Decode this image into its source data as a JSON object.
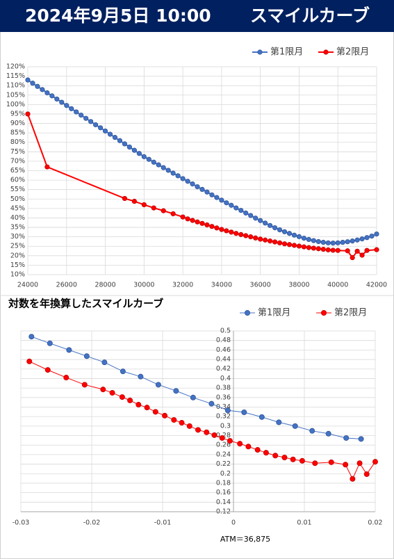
{
  "header": {
    "title": "2024年9月5日 10:00",
    "subtitle": "スマイルカーブ"
  },
  "chart_data": [
    {
      "type": "line",
      "legend": "top-right",
      "grid": true,
      "xlim": [
        24000,
        42000
      ],
      "xticks": [
        24000,
        26000,
        28000,
        30000,
        32000,
        34000,
        36000,
        38000,
        40000,
        42000
      ],
      "ylim": [
        10,
        120
      ],
      "yticks": [
        {
          "value": 10,
          "label": "10%"
        },
        {
          "value": 15,
          "label": "15%"
        },
        {
          "value": 20,
          "label": "20%"
        },
        {
          "value": 25,
          "label": "25%"
        },
        {
          "value": 30,
          "label": "30%"
        },
        {
          "value": 35,
          "label": "35%"
        },
        {
          "value": 40,
          "label": "40%"
        },
        {
          "value": 45,
          "label": "45%"
        },
        {
          "value": 50,
          "label": "50%"
        },
        {
          "value": 55,
          "label": "55%"
        },
        {
          "value": 60,
          "label": "60%"
        },
        {
          "value": 65,
          "label": "65%"
        },
        {
          "value": 70,
          "label": "70%"
        },
        {
          "value": 75,
          "label": "75%"
        },
        {
          "value": 80,
          "label": "80%"
        },
        {
          "value": 85,
          "label": "85%"
        },
        {
          "value": 90,
          "label": "90%"
        },
        {
          "value": 95,
          "label": "95%"
        },
        {
          "value": 100,
          "label": "100%"
        },
        {
          "value": 105,
          "label": "105%"
        },
        {
          "value": 110,
          "label": "110%"
        },
        {
          "value": 115,
          "label": "115%"
        },
        {
          "value": 120,
          "label": "120%"
        }
      ],
      "series": [
        {
          "name": "第1限月",
          "color": "#4472c4",
          "x": [
            24000,
            24250,
            24500,
            24750,
            25000,
            25250,
            25500,
            25750,
            26000,
            26250,
            26500,
            26750,
            27000,
            27250,
            27500,
            27750,
            28000,
            28250,
            28500,
            28750,
            29000,
            29250,
            29500,
            29750,
            30000,
            30250,
            30500,
            30750,
            31000,
            31250,
            31500,
            31750,
            32000,
            32250,
            32500,
            32750,
            33000,
            33250,
            33500,
            33750,
            34000,
            34250,
            34500,
            34750,
            35000,
            35250,
            35500,
            35750,
            36000,
            36250,
            36500,
            36750,
            37000,
            37250,
            37500,
            37750,
            38000,
            38250,
            38500,
            38750,
            39000,
            39250,
            39500,
            39750,
            40000,
            40250,
            40500,
            40750,
            41000,
            41250,
            41500,
            41750,
            42000
          ],
          "values": [
            113.0,
            111.3,
            109.6,
            107.9,
            106.2,
            104.6,
            102.9,
            101.2,
            99.5,
            97.8,
            96.1,
            94.4,
            92.7,
            91.0,
            89.3,
            87.7,
            86.0,
            84.3,
            82.6,
            80.9,
            79.2,
            77.5,
            75.8,
            74.1,
            72.4,
            71.0,
            69.5,
            68.1,
            66.6,
            65.2,
            63.7,
            62.3,
            60.8,
            59.4,
            58.0,
            56.5,
            55.1,
            53.7,
            52.2,
            50.8,
            49.4,
            48.0,
            46.7,
            45.3,
            44.0,
            42.6,
            41.3,
            39.9,
            38.6,
            37.3,
            36.0,
            34.8,
            33.7,
            32.7,
            31.8,
            30.9,
            30.1,
            29.3,
            28.6,
            28.0,
            27.5,
            27.1,
            26.8,
            26.7,
            26.8,
            27.1,
            27.4,
            27.8,
            28.3,
            28.9,
            29.6,
            30.4,
            31.5
          ]
        },
        {
          "name": "第2限月",
          "color": "#ff0000",
          "x": [
            24000,
            25000,
            29000,
            29500,
            30000,
            30500,
            31000,
            31500,
            32000,
            32250,
            32500,
            32750,
            33000,
            33250,
            33500,
            33750,
            34000,
            34250,
            34500,
            34750,
            35000,
            35250,
            35500,
            35750,
            36000,
            36250,
            36500,
            36750,
            37000,
            37250,
            37500,
            37750,
            38000,
            38250,
            38500,
            38750,
            39000,
            39250,
            39500,
            39750,
            40000,
            40500,
            40750,
            41000,
            41250,
            41500,
            42000
          ],
          "values": [
            95.0,
            67.0,
            50.3,
            48.8,
            47.0,
            45.3,
            43.8,
            42.2,
            40.5,
            39.5,
            38.7,
            37.9,
            37.1,
            36.3,
            35.5,
            34.7,
            33.9,
            33.2,
            32.5,
            31.8,
            31.2,
            30.6,
            30.0,
            29.4,
            28.8,
            28.3,
            27.8,
            27.3,
            26.8,
            26.3,
            25.9,
            25.5,
            25.1,
            24.7,
            24.3,
            24.0,
            23.7,
            23.4,
            23.1,
            22.9,
            22.8,
            22.6,
            19.0,
            22.4,
            20.3,
            22.8,
            23.2
          ]
        }
      ]
    },
    {
      "type": "line",
      "title": "対数を年換算したスマイルカーブ",
      "legend": "top-right",
      "grid": true,
      "annotation": "ATM＝36,875",
      "xlim": [
        -0.03,
        0.02
      ],
      "xticks": [
        -0.03,
        -0.02,
        -0.01,
        0,
        0.01,
        0.02
      ],
      "ylim": [
        0.12,
        0.5
      ],
      "yticks": [
        0.12,
        0.14,
        0.16,
        0.18,
        0.2,
        0.22,
        0.24,
        0.26,
        0.28,
        0.3,
        0.32,
        0.34,
        0.36,
        0.38,
        0.4,
        0.42,
        0.44,
        0.46,
        0.48,
        0.5
      ],
      "series": [
        {
          "name": "第1限月",
          "color": "#4472c4",
          "x": [
            -0.0285,
            -0.0259,
            -0.0232,
            -0.0207,
            -0.0182,
            -0.0156,
            -0.0131,
            -0.0106,
            -0.0081,
            -0.0057,
            -0.0031,
            -0.0008,
            0.0015,
            0.004,
            0.0064,
            0.0087,
            0.0111,
            0.0134,
            0.0159,
            0.018
          ],
          "values": [
            0.488,
            0.474,
            0.46,
            0.447,
            0.434,
            0.415,
            0.404,
            0.387,
            0.374,
            0.36,
            0.347,
            0.333,
            0.329,
            0.319,
            0.308,
            0.3,
            0.29,
            0.284,
            0.275,
            0.273
          ]
        },
        {
          "name": "第2限月",
          "color": "#ff0000",
          "x": [
            -0.0288,
            -0.0262,
            -0.0236,
            -0.021,
            -0.0184,
            -0.0171,
            -0.0157,
            -0.0146,
            -0.0134,
            -0.0122,
            -0.011,
            -0.0097,
            -0.0084,
            -0.0073,
            -0.0062,
            -0.005,
            -0.0038,
            -0.0027,
            -0.0016,
            -0.0005,
            0.0009,
            0.0021,
            0.0034,
            0.0046,
            0.0059,
            0.0072,
            0.0084,
            0.0097,
            0.0115,
            0.0138,
            0.0158,
            0.0168,
            0.0178,
            0.0188,
            0.02
          ],
          "values": [
            0.436,
            0.418,
            0.402,
            0.387,
            0.377,
            0.37,
            0.361,
            0.354,
            0.345,
            0.339,
            0.33,
            0.322,
            0.313,
            0.307,
            0.3,
            0.292,
            0.287,
            0.281,
            0.275,
            0.269,
            0.263,
            0.257,
            0.25,
            0.244,
            0.238,
            0.234,
            0.23,
            0.227,
            0.222,
            0.224,
            0.219,
            0.189,
            0.222,
            0.199,
            0.225
          ]
        }
      ]
    }
  ]
}
